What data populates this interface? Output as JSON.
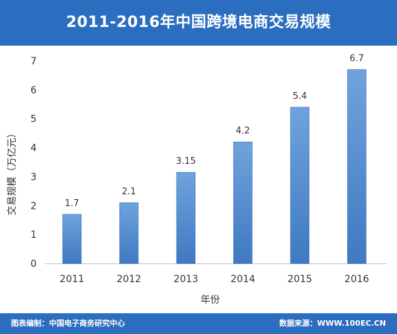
{
  "header": {
    "title": "2011-2016年中国跨境电商交易规模"
  },
  "footer": {
    "left": "图表编制：中国电子商务研究中心",
    "right": "数据来源：WWW.100EC.CN"
  },
  "colors": {
    "title_bar": "#2b6dbf",
    "bar_fill_top": "#6fa3dd",
    "bar_fill_bottom": "#4079c2",
    "axis_text": "#333333"
  },
  "chart_data": {
    "type": "bar",
    "title": "2011-2016年中国跨境电商交易规模",
    "xlabel": "年份",
    "ylabel": "交易规模（万亿元）",
    "categories": [
      "2011",
      "2012",
      "2013",
      "2014",
      "2015",
      "2016"
    ],
    "values": [
      1.7,
      2.1,
      3.15,
      4.2,
      5.4,
      6.7
    ],
    "data_labels": [
      "1.7",
      "2.1",
      "3.15",
      "4.2",
      "5.4",
      "6.7"
    ],
    "ylim": [
      0,
      7
    ],
    "yticks": [
      "0",
      "1",
      "2",
      "3",
      "4",
      "5",
      "6",
      "7"
    ],
    "grid": false,
    "legend": "none"
  }
}
